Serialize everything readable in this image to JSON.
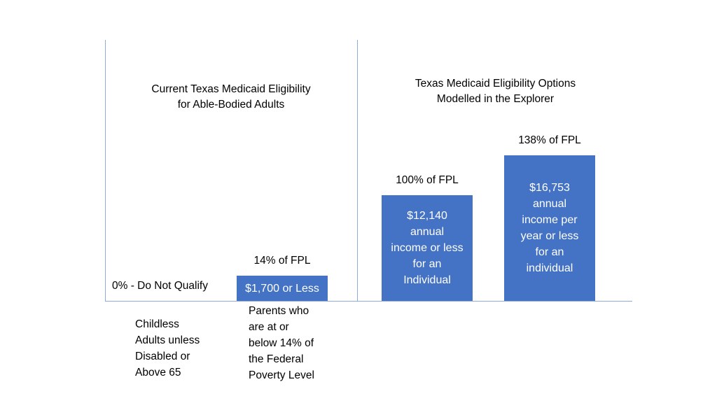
{
  "colors": {
    "bar": "#4472c4",
    "axis": "#8faadc"
  },
  "panels": {
    "left_title": "Current Texas Medicaid Eligibility\nfor Able-Bodied Adults",
    "right_title": "Texas Medicaid Eligibility Options\nModelled in the Explorer"
  },
  "chart_data": {
    "type": "bar",
    "categories": [
      "Childless\nAdults unless\nDisabled or\nAbove 65",
      "Parents who\nare at or\nbelow 14% of\nthe Federal\nPoverty Level",
      "",
      ""
    ],
    "values": [
      0,
      14,
      100,
      138
    ],
    "value_labels": [
      "0% - Do Not Qualify",
      "14% of FPL",
      "100% of FPL",
      "138% of FPL"
    ],
    "bar_texts": [
      "",
      "$1,700 or Less",
      "$12,140\nannual\nincome or less\nfor an\nIndividual",
      "$16,753\nannual\nincome per\nyear or less\nfor an\nindividual"
    ]
  }
}
